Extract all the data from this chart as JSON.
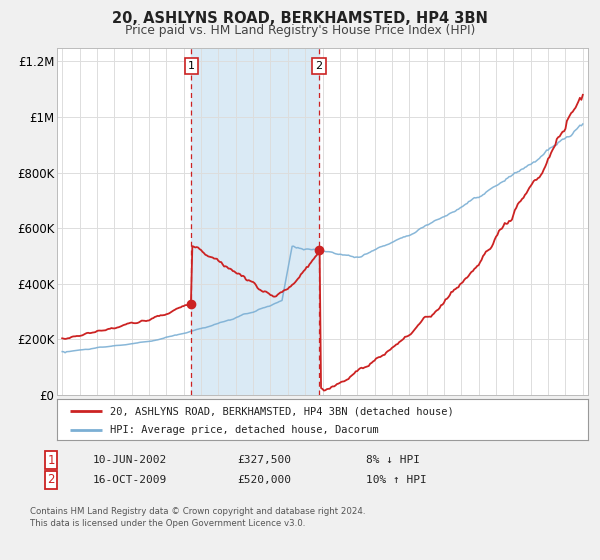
{
  "title": "20, ASHLYNS ROAD, BERKHAMSTED, HP4 3BN",
  "subtitle": "Price paid vs. HM Land Registry's House Price Index (HPI)",
  "ylim": [
    0,
    1250000
  ],
  "xlim": [
    1994.7,
    2025.3
  ],
  "yticks": [
    0,
    200000,
    400000,
    600000,
    800000,
    1000000,
    1200000
  ],
  "ytick_labels": [
    "£0",
    "£200K",
    "£400K",
    "£600K",
    "£800K",
    "£1M",
    "£1.2M"
  ],
  "xticks": [
    1995,
    1996,
    1997,
    1998,
    1999,
    2000,
    2001,
    2002,
    2003,
    2004,
    2005,
    2006,
    2007,
    2008,
    2009,
    2010,
    2011,
    2012,
    2013,
    2014,
    2015,
    2016,
    2017,
    2018,
    2019,
    2020,
    2021,
    2022,
    2023,
    2024,
    2025
  ],
  "red_line_color": "#cc2222",
  "blue_line_color": "#7bafd4",
  "shaded_region": [
    2002.45,
    2009.8
  ],
  "shaded_color": "#daeaf5",
  "marker1_x": 2002.45,
  "marker1_y": 327500,
  "marker2_x": 2009.8,
  "marker2_y": 520000,
  "marker_color": "#cc2222",
  "vline1_x": 2002.45,
  "vline2_x": 2009.8,
  "vline_color": "#cc2222",
  "legend_red_label": "20, ASHLYNS ROAD, BERKHAMSTED, HP4 3BN (detached house)",
  "legend_blue_label": "HPI: Average price, detached house, Dacorum",
  "table_row1": [
    "1",
    "10-JUN-2002",
    "£327,500",
    "8% ↓ HPI"
  ],
  "table_row2": [
    "2",
    "16-OCT-2009",
    "£520,000",
    "10% ↑ HPI"
  ],
  "footer1": "Contains HM Land Registry data © Crown copyright and database right 2024.",
  "footer2": "This data is licensed under the Open Government Licence v3.0.",
  "bg_color": "#f0f0f0",
  "plot_bg_color": "#ffffff",
  "grid_color": "#dddddd"
}
